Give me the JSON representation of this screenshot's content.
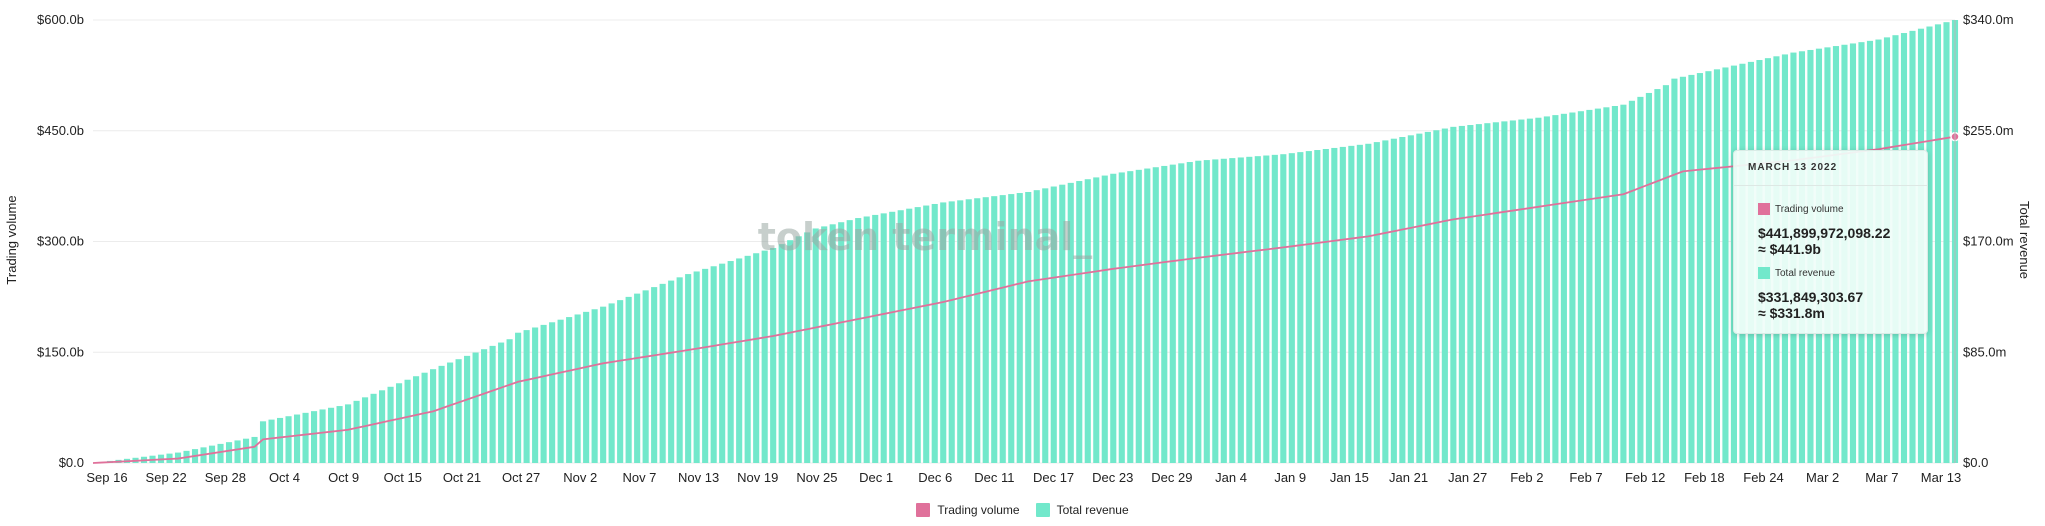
{
  "chart_data": {
    "type": "bar",
    "title": "",
    "x_tick_labels": [
      "Sep 16",
      "Sep 22",
      "Sep 28",
      "Oct 4",
      "Oct 9",
      "Oct 15",
      "Oct 21",
      "Oct 27",
      "Nov 2",
      "Nov 7",
      "Nov 13",
      "Nov 19",
      "Nov 25",
      "Dec 1",
      "Dec 6",
      "Dec 11",
      "Dec 17",
      "Dec 23",
      "Dec 29",
      "Jan 4",
      "Jan 9",
      "Jan 15",
      "Jan 21",
      "Jan 27",
      "Feb 2",
      "Feb 7",
      "Feb 12",
      "Feb 18",
      "Feb 24",
      "Mar 2",
      "Mar 7",
      "Mar 13"
    ],
    "left_axis": {
      "label": "Trading volume",
      "ticks": [
        "$0.0",
        "$150.0b",
        "$300.0b",
        "$450.0b",
        "$600.0b"
      ],
      "range": [
        0,
        600
      ]
    },
    "right_axis": {
      "label": "Total revenue",
      "ticks": [
        "$0.0",
        "$85.0m",
        "$170.0m",
        "$255.0m",
        "$340.0m"
      ],
      "range": [
        0,
        340
      ]
    },
    "series": [
      {
        "name": "Trading volume",
        "type": "line",
        "axis": "left",
        "unit": "billions USD",
        "color": "#e0719b",
        "keypoints": [
          [
            0,
            0
          ],
          [
            10,
            6
          ],
          [
            19,
            22
          ],
          [
            20,
            32
          ],
          [
            30,
            45
          ],
          [
            40,
            70
          ],
          [
            50,
            110
          ],
          [
            60,
            135
          ],
          [
            70,
            153
          ],
          [
            80,
            172
          ],
          [
            90,
            195
          ],
          [
            100,
            218
          ],
          [
            110,
            246
          ],
          [
            120,
            263
          ],
          [
            130,
            278
          ],
          [
            140,
            292
          ],
          [
            150,
            307
          ],
          [
            160,
            330
          ],
          [
            170,
            347
          ],
          [
            180,
            364
          ],
          [
            187,
            395
          ],
          [
            200,
            410
          ],
          [
            210,
            425
          ],
          [
            219,
            442
          ]
        ]
      },
      {
        "name": "Total revenue",
        "type": "bar",
        "axis": "right",
        "unit": "millions USD",
        "color": "#72e8cb",
        "keypoints": [
          [
            0,
            0
          ],
          [
            10,
            8
          ],
          [
            19,
            20
          ],
          [
            20,
            32
          ],
          [
            30,
            45
          ],
          [
            40,
            72
          ],
          [
            49,
            95
          ],
          [
            50,
            100
          ],
          [
            60,
            120
          ],
          [
            70,
            145
          ],
          [
            80,
            165
          ],
          [
            85,
            180
          ],
          [
            90,
            188
          ],
          [
            100,
            200
          ],
          [
            110,
            208
          ],
          [
            120,
            222
          ],
          [
            130,
            232
          ],
          [
            140,
            237
          ],
          [
            150,
            245
          ],
          [
            160,
            258
          ],
          [
            170,
            265
          ],
          [
            180,
            275
          ],
          [
            185,
            290
          ],
          [
            186,
            295
          ],
          [
            200,
            315
          ],
          [
            210,
            325
          ],
          [
            216,
            335
          ],
          [
            219,
            340
          ]
        ]
      }
    ],
    "grid": true,
    "legend_position": "bottom-center"
  },
  "watermark": "token terminal_",
  "tooltip": {
    "date": "MARCH 13 2022",
    "volume_label": "Trading volume",
    "volume_value": "$441,899,972,098.22",
    "volume_approx": "≈ $441.9b",
    "revenue_label": "Total revenue",
    "revenue_value": "$331,849,303.67",
    "revenue_approx": "≈ $331.8m"
  },
  "legend": [
    {
      "label": "Trading volume",
      "color": "#e0719b"
    },
    {
      "label": "Total revenue",
      "color": "#72e8cb"
    }
  ]
}
